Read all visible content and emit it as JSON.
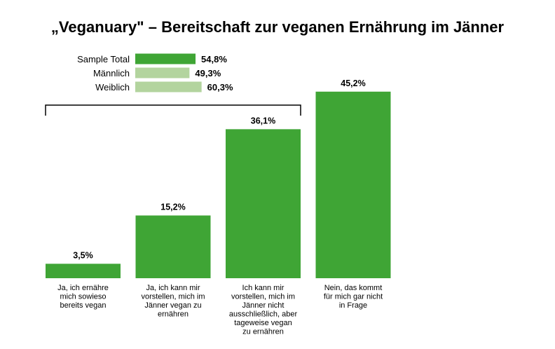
{
  "chart_data": {
    "type": "bar",
    "title": "„Veganuary\" – Bereitschaft zur veganen Ernährung im Jänner",
    "xlabel": "",
    "ylabel": "",
    "ylim": [
      0,
      50
    ],
    "grid": false,
    "categories": [
      [
        "Ja, ich ernähre",
        "mich sowieso",
        "bereits vegan"
      ],
      [
        "Ja, ich kann mir",
        "vorstellen, mich im",
        "Jänner vegan zu",
        "ernähren"
      ],
      [
        "Ich kann mir",
        "vorstellen, mich im",
        "Jänner nicht",
        "ausschließlich, aber",
        "tageweise vegan",
        "zu ernähren"
      ],
      [
        "Nein, das kommt",
        "für mich gar nicht",
        "in Frage"
      ]
    ],
    "values": [
      3.5,
      15.2,
      36.1,
      45.2
    ],
    "value_labels": [
      "3,5%",
      "15,2%",
      "36,1%",
      "45,2%"
    ],
    "bar_color": "#3fa535",
    "bracket_spans_first_n": 3,
    "summary": {
      "items": [
        {
          "label": "Sample Total",
          "value": 54.8,
          "value_label": "54,8%",
          "color": "#3fa535"
        },
        {
          "label": "Männlich",
          "value": 49.3,
          "value_label": "49,3%",
          "color": "#b3d49e"
        },
        {
          "label": "Weiblich",
          "value": 60.3,
          "value_label": "60,3%",
          "color": "#b3d49e"
        }
      ]
    }
  }
}
